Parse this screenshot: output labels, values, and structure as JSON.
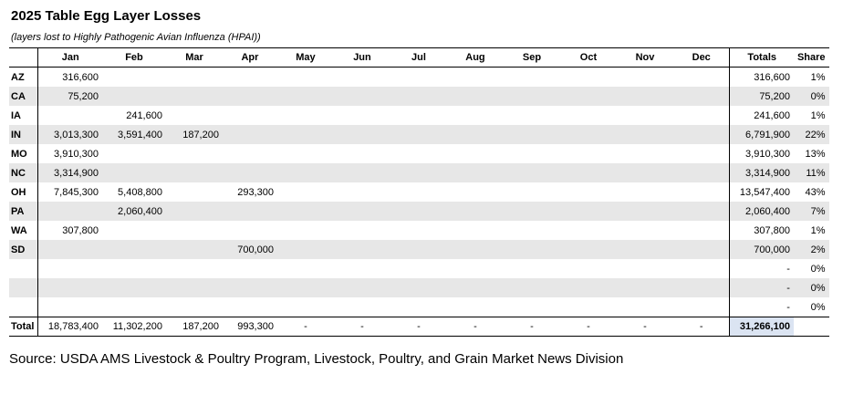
{
  "title": "2025 Table Egg Layer Losses",
  "subtitle": "(layers lost to Highly Pathogenic Avian Influenza (HPAI))",
  "headers": {
    "state": "",
    "months": [
      "Jan",
      "Feb",
      "Mar",
      "Apr",
      "May",
      "Jun",
      "Jul",
      "Aug",
      "Sep",
      "Oct",
      "Nov",
      "Dec"
    ],
    "totals": "Totals",
    "share": "Share"
  },
  "rows": [
    {
      "state": "AZ",
      "months": [
        "316,600",
        "",
        "",
        "",
        "",
        "",
        "",
        "",
        "",
        "",
        "",
        ""
      ],
      "total": "316,600",
      "share": "1%"
    },
    {
      "state": "CA",
      "months": [
        "75,200",
        "",
        "",
        "",
        "",
        "",
        "",
        "",
        "",
        "",
        "",
        ""
      ],
      "total": "75,200",
      "share": "0%"
    },
    {
      "state": "IA",
      "months": [
        "",
        "241,600",
        "",
        "",
        "",
        "",
        "",
        "",
        "",
        "",
        "",
        ""
      ],
      "total": "241,600",
      "share": "1%"
    },
    {
      "state": "IN",
      "months": [
        "3,013,300",
        "3,591,400",
        "187,200",
        "",
        "",
        "",
        "",
        "",
        "",
        "",
        "",
        ""
      ],
      "total": "6,791,900",
      "share": "22%"
    },
    {
      "state": "MO",
      "months": [
        "3,910,300",
        "",
        "",
        "",
        "",
        "",
        "",
        "",
        "",
        "",
        "",
        ""
      ],
      "total": "3,910,300",
      "share": "13%"
    },
    {
      "state": "NC",
      "months": [
        "3,314,900",
        "",
        "",
        "",
        "",
        "",
        "",
        "",
        "",
        "",
        "",
        ""
      ],
      "total": "3,314,900",
      "share": "11%"
    },
    {
      "state": "OH",
      "months": [
        "7,845,300",
        "5,408,800",
        "",
        "293,300",
        "",
        "",
        "",
        "",
        "",
        "",
        "",
        ""
      ],
      "total": "13,547,400",
      "share": "43%"
    },
    {
      "state": "PA",
      "months": [
        "",
        "2,060,400",
        "",
        "",
        "",
        "",
        "",
        "",
        "",
        "",
        "",
        ""
      ],
      "total": "2,060,400",
      "share": "7%"
    },
    {
      "state": "WA",
      "months": [
        "307,800",
        "",
        "",
        "",
        "",
        "",
        "",
        "",
        "",
        "",
        "",
        ""
      ],
      "total": "307,800",
      "share": "1%"
    },
    {
      "state": "SD",
      "months": [
        "",
        "",
        "",
        "700,000",
        "",
        "",
        "",
        "",
        "",
        "",
        "",
        ""
      ],
      "total": "700,000",
      "share": "2%"
    },
    {
      "state": "",
      "months": [
        "",
        "",
        "",
        "",
        "",
        "",
        "",
        "",
        "",
        "",
        "",
        ""
      ],
      "total": "-",
      "share": "0%"
    },
    {
      "state": "",
      "months": [
        "",
        "",
        "",
        "",
        "",
        "",
        "",
        "",
        "",
        "",
        "",
        ""
      ],
      "total": "-",
      "share": "0%"
    },
    {
      "state": "",
      "months": [
        "",
        "",
        "",
        "",
        "",
        "",
        "",
        "",
        "",
        "",
        "",
        ""
      ],
      "total": "-",
      "share": "0%"
    }
  ],
  "footer": {
    "label": "Total",
    "months": [
      "18,783,400",
      "11,302,200",
      "187,200",
      "993,300",
      "-",
      "-",
      "-",
      "-",
      "-",
      "-",
      "-",
      "-"
    ],
    "grand_total": "31,266,100",
    "share": ""
  },
  "source": "Source: USDA AMS Livestock & Poultry Program, Livestock, Poultry, and Grain Market News Division"
}
